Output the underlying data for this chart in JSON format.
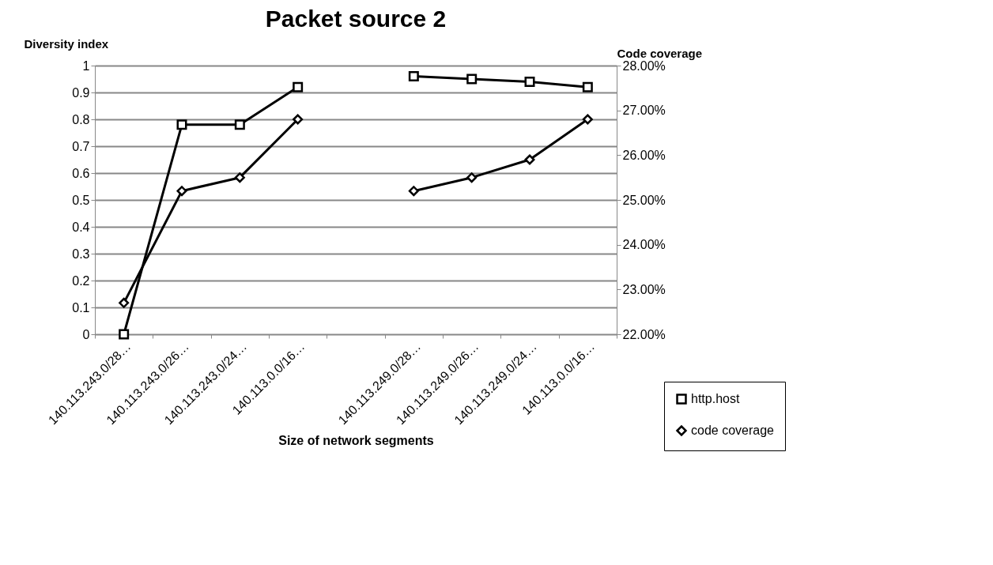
{
  "chart_data": {
    "type": "line",
    "title": "Packet source 2",
    "xlabel": "Size of network segments",
    "ylabel": "Diversity index",
    "y2label": "Code coverage",
    "categories": [
      "140.113.243.0/28…",
      "140.113.243.0/26…",
      "140.113.243.0/24…",
      "140.113.0.0/16…",
      null,
      "140.113.249.0/28…",
      "140.113.249.0/26…",
      "140.113.249.0/24…",
      "140.113.0.0/16…"
    ],
    "series": [
      {
        "name": "http.host",
        "color": "#000000",
        "marker": "square",
        "values": [
          0,
          0.78,
          0.78,
          0.92,
          null,
          0.96,
          0.95,
          0.94,
          0.92
        ]
      },
      {
        "name": "code coverage",
        "color": "#000000",
        "marker": "diamond",
        "axis": "y2",
        "values": [
          22.7,
          25.2,
          25.5,
          26.8,
          null,
          25.2,
          25.5,
          25.9,
          26.8
        ]
      }
    ],
    "ylim": [
      0,
      1
    ],
    "yticks": [
      0,
      0.1,
      0.2,
      0.3,
      0.4,
      0.5,
      0.6,
      0.7,
      0.8,
      0.9,
      1
    ],
    "y2lim": [
      22,
      28
    ],
    "y2ticks": [
      {
        "value": 22,
        "label": "22.00%"
      },
      {
        "value": 23,
        "label": "23.00%"
      },
      {
        "value": 24,
        "label": "24.00%"
      },
      {
        "value": 25,
        "label": "25.00%"
      },
      {
        "value": 26,
        "label": "26.00%"
      },
      {
        "value": 27,
        "label": "27.00%"
      },
      {
        "value": 28,
        "label": "28.00%"
      }
    ],
    "grid": "y",
    "legend": "bottom right"
  }
}
